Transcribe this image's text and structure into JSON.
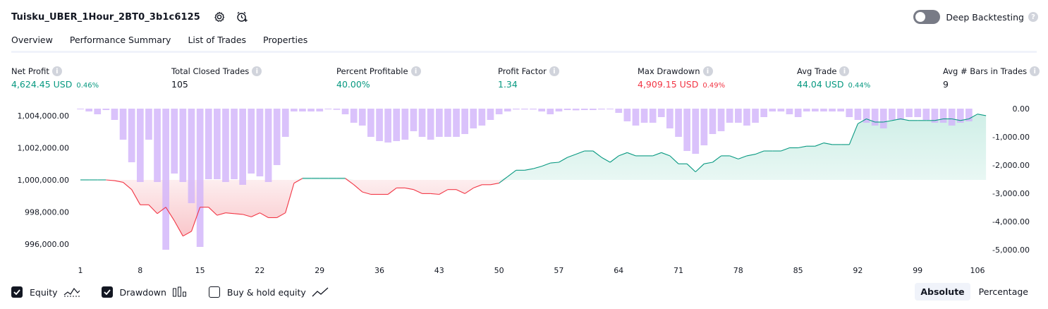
{
  "header": {
    "strategy_name": "Tuisku_UBER_1Hour_2BT0_3b1c6125"
  },
  "deep_backtesting": {
    "label": "Deep Backtesting",
    "enabled": false
  },
  "tabs": [
    {
      "label": "Overview",
      "active": true
    },
    {
      "label": "Performance Summary"
    },
    {
      "label": "List of Trades"
    },
    {
      "label": "Properties"
    }
  ],
  "metrics": {
    "net_profit": {
      "label": "Net Profit",
      "value": "4,624.45 USD",
      "pct": "0.46%"
    },
    "total_closed_trades": {
      "label": "Total Closed Trades",
      "value": "105"
    },
    "percent_profitable": {
      "label": "Percent Profitable",
      "value": "40.00%"
    },
    "profit_factor": {
      "label": "Profit Factor",
      "value": "1.34"
    },
    "max_drawdown": {
      "label": "Max Drawdown",
      "value": "4,909.15 USD",
      "pct": "0.49%"
    },
    "avg_trade": {
      "label": "Avg Trade",
      "value": "44.04 USD",
      "pct": "0.44%"
    },
    "avg_bars": {
      "label": "Avg # Bars in Trades",
      "value": "9"
    }
  },
  "legend": {
    "equity": {
      "label": "Equity",
      "checked": true
    },
    "drawdown": {
      "label": "Drawdown",
      "checked": true
    },
    "buy_hold": {
      "label": "Buy & hold equity",
      "checked": false
    }
  },
  "mode": {
    "absolute": "Absolute",
    "percentage": "Percentage",
    "selected": "Absolute"
  },
  "colors": {
    "positive": "#089981",
    "negative": "#f23645",
    "drawdown_bar": "#d1b3fa",
    "equity_pos_fill": "#cdeee6",
    "equity_neg_fill": "#f9c7cb"
  },
  "chart_data": {
    "type": "line",
    "x_ticks": [
      "1",
      "8",
      "15",
      "22",
      "29",
      "36",
      "43",
      "50",
      "57",
      "64",
      "71",
      "78",
      "85",
      "92",
      "99",
      "106"
    ],
    "left_axis_ticks": [
      "1,004,000.00",
      "1,002,000.00",
      "1,000,000.00",
      "998,000.00",
      "996,000.00"
    ],
    "right_axis_ticks": [
      "0.00",
      "-1,000.00",
      "-2,000.00",
      "-3,000.00",
      "-4,000.00",
      "-5,000.00"
    ],
    "baseline": 1000000,
    "left_ylim": [
      995300,
      1004700
    ],
    "right_ylim": [
      -5200,
      150
    ],
    "series": [
      {
        "name": "Equity",
        "x_range": [
          1,
          106
        ],
        "values": [
          1000000,
          1000000,
          1000000,
          1000000,
          999950,
          999850,
          999400,
          998450,
          998450,
          997900,
          998300,
          997450,
          996500,
          996800,
          998300,
          998300,
          997800,
          997950,
          997900,
          997850,
          997700,
          997950,
          997650,
          997650,
          997950,
          999800,
          1000100,
          1000100,
          1000100,
          1000100,
          1000100,
          1000100,
          999700,
          999250,
          999100,
          999100,
          999100,
          999500,
          999500,
          999400,
          999150,
          999150,
          999100,
          999400,
          999400,
          999150,
          999500,
          999700,
          999700,
          999800,
          1000200,
          1000600,
          1000600,
          1000700,
          1000850,
          1001050,
          1001100,
          1001400,
          1001600,
          1001800,
          1001800,
          1001400,
          1001100,
          1001500,
          1001700,
          1001500,
          1001500,
          1001500,
          1001700,
          1001500,
          1001000,
          1001000,
          1000500,
          1001000,
          1001100,
          1001500,
          1001500,
          1001300,
          1001500,
          1001600,
          1001800,
          1001800,
          1001800,
          1002000,
          1002000,
          1002100,
          1002100,
          1002300,
          1002200,
          1002200,
          1002200,
          1003500,
          1003800,
          1003600,
          1003600,
          1003700,
          1003800,
          1003700,
          1003700,
          1003700,
          1003700,
          1003800,
          1003800,
          1003700,
          1003800,
          1004100,
          1004000
        ]
      },
      {
        "name": "Drawdown",
        "x_range": [
          1,
          105
        ],
        "values": [
          -10,
          -100,
          -200,
          -50,
          -400,
          -1100,
          -1900,
          -2600,
          -1100,
          -2600,
          -5000,
          -2300,
          -2600,
          -3350,
          -4900,
          -2500,
          -2500,
          -2600,
          -2500,
          -2700,
          -2300,
          -2400,
          -2600,
          -2000,
          -1000,
          -100,
          -100,
          -100,
          -100,
          -20,
          -40,
          -200,
          -500,
          -600,
          -1000,
          -1150,
          -1200,
          -1150,
          -1100,
          -800,
          -1000,
          -1100,
          -1000,
          -1000,
          -1000,
          -900,
          -700,
          -600,
          -400,
          -200,
          -100,
          -30,
          -30,
          -30,
          -100,
          -200,
          -100,
          -50,
          -60,
          -50,
          -50,
          -30,
          -10,
          -150,
          -450,
          -600,
          -500,
          -500,
          -300,
          -700,
          -1000,
          -1500,
          -1600,
          -1300,
          -900,
          -800,
          -500,
          -500,
          -600,
          -500,
          -300,
          -100,
          -100,
          -200,
          -300,
          -100,
          -100,
          -100,
          -100,
          -100,
          -300,
          -400,
          -500,
          -600,
          -700,
          -400,
          -400,
          -300,
          -300,
          -400,
          -500,
          -500,
          -600,
          -500,
          -450
        ]
      }
    ]
  }
}
